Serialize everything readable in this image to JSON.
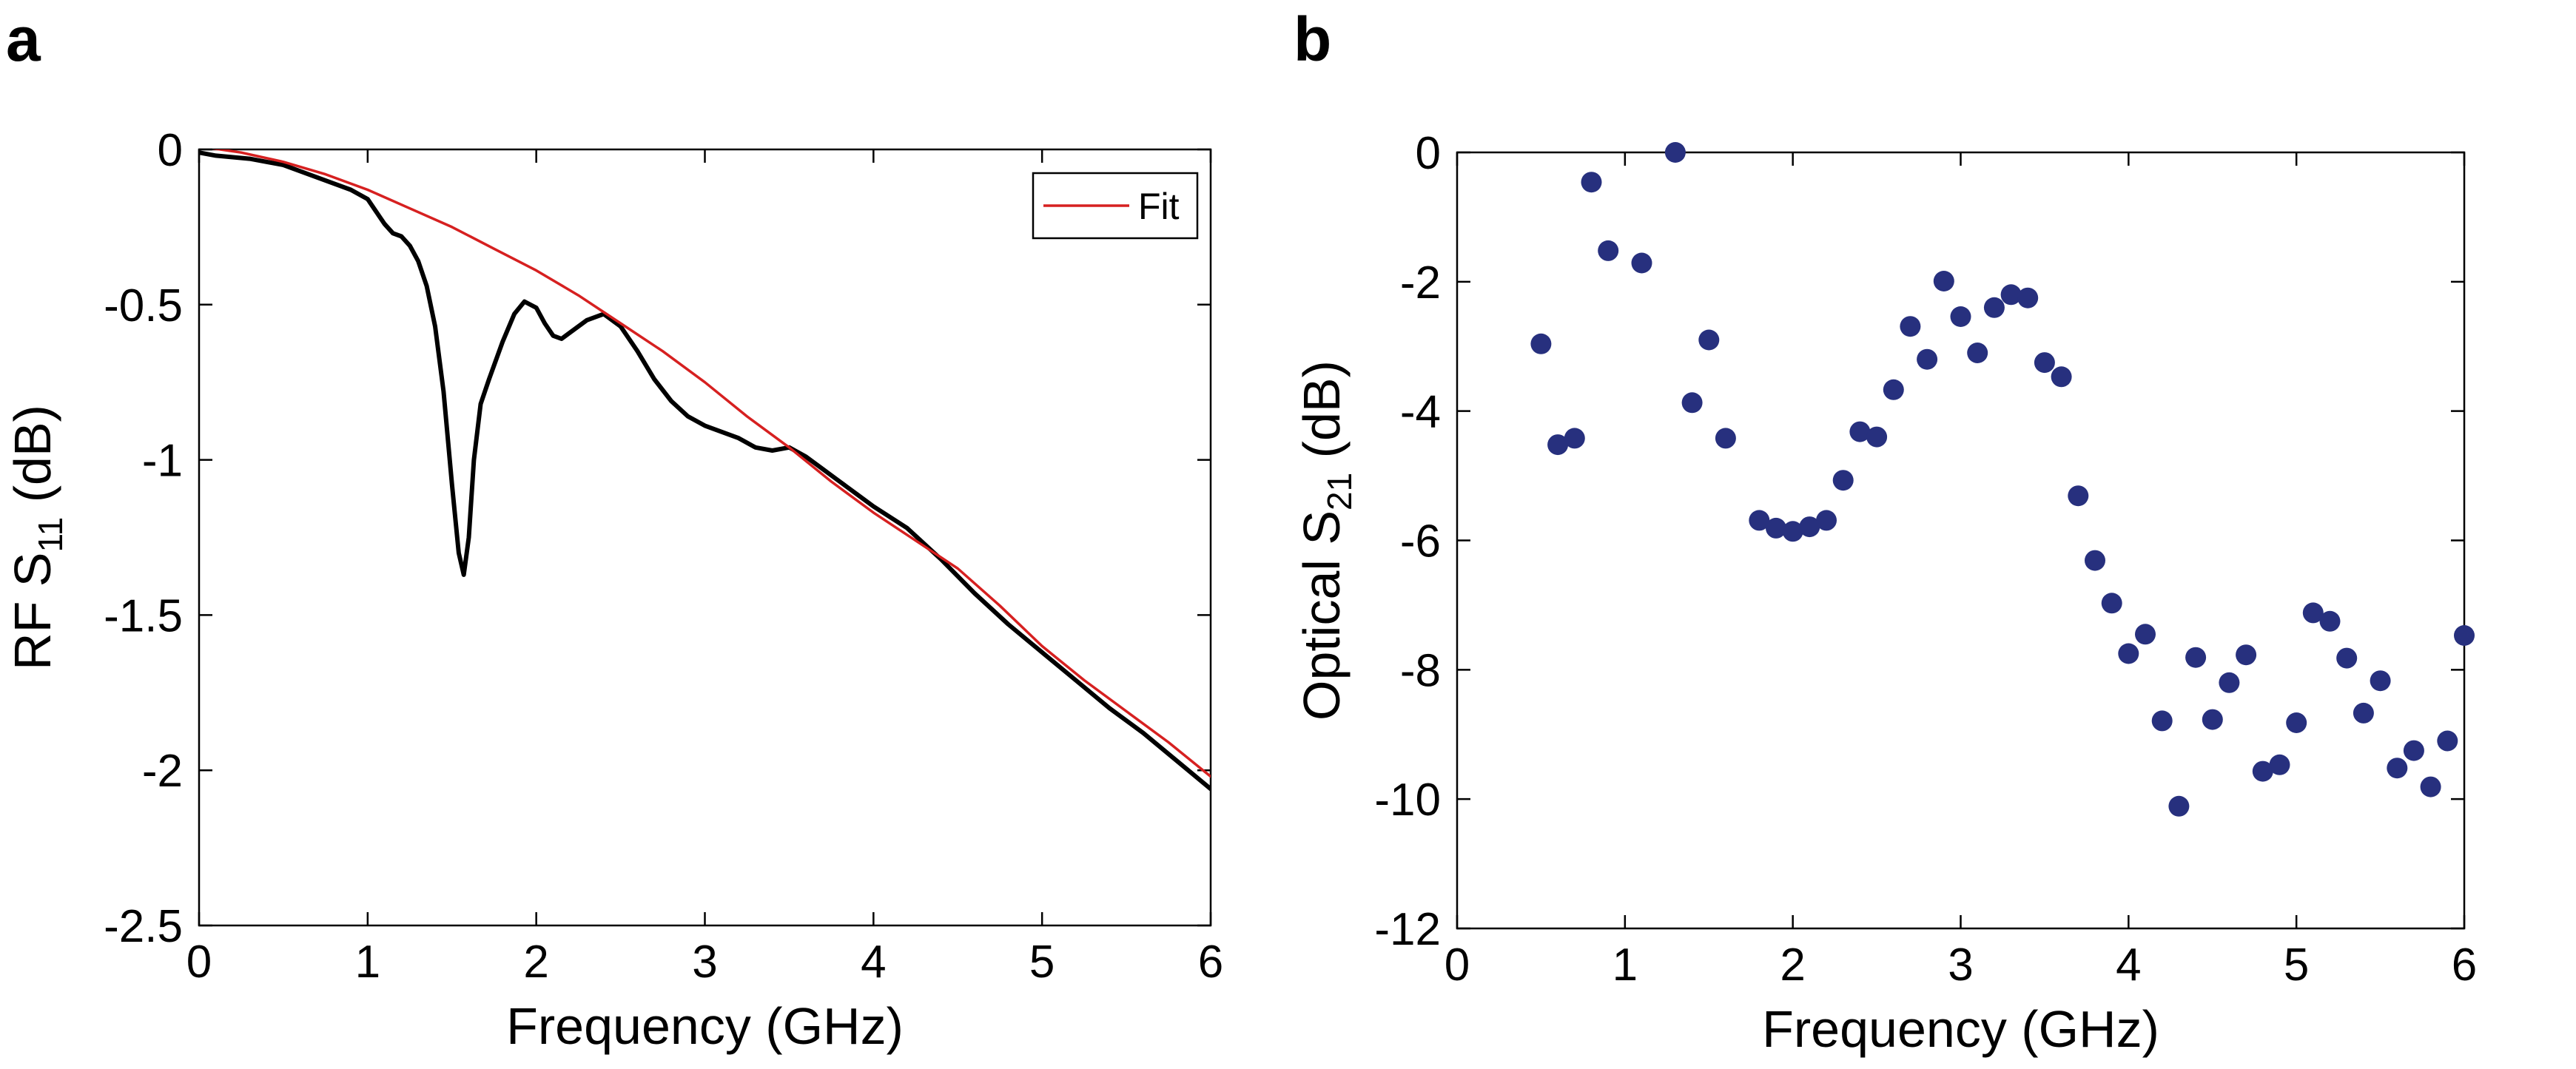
{
  "chart_data": [
    {
      "panel": "a",
      "type": "line",
      "xlabel": "Frequency (GHz)",
      "ylabel_main": "RF S",
      "ylabel_sub": "11",
      "ylabel_unit": " (dB)",
      "xlim": [
        0,
        6
      ],
      "ylim": [
        -2.5,
        0
      ],
      "xticks": [
        "0",
        "1",
        "2",
        "3",
        "4",
        "5",
        "6"
      ],
      "yticks": [
        "0",
        "-0.5",
        "-1",
        "-1.5",
        "-2",
        "-2.5"
      ],
      "ytick_values": [
        0,
        -0.5,
        -1,
        -1.5,
        -2,
        -2.5
      ],
      "legend": {
        "position": "top-right",
        "entries": [
          "Fit"
        ]
      },
      "series": [
        {
          "role": "measured",
          "color": "#000000",
          "points": [
            [
              0,
              -0.01
            ],
            [
              0.1,
              -0.02
            ],
            [
              0.2,
              -0.025
            ],
            [
              0.3,
              -0.03
            ],
            [
              0.4,
              -0.04
            ],
            [
              0.5,
              -0.05
            ],
            [
              0.6,
              -0.07
            ],
            [
              0.7,
              -0.09
            ],
            [
              0.8,
              -0.11
            ],
            [
              0.9,
              -0.13
            ],
            [
              1.0,
              -0.16
            ],
            [
              1.05,
              -0.2
            ],
            [
              1.1,
              -0.24
            ],
            [
              1.15,
              -0.27
            ],
            [
              1.2,
              -0.28
            ],
            [
              1.25,
              -0.31
            ],
            [
              1.3,
              -0.36
            ],
            [
              1.35,
              -0.44
            ],
            [
              1.4,
              -0.57
            ],
            [
              1.45,
              -0.78
            ],
            [
              1.5,
              -1.08
            ],
            [
              1.54,
              -1.3
            ],
            [
              1.57,
              -1.37
            ],
            [
              1.6,
              -1.25
            ],
            [
              1.63,
              -1.0
            ],
            [
              1.67,
              -0.82
            ],
            [
              1.72,
              -0.74
            ],
            [
              1.8,
              -0.62
            ],
            [
              1.87,
              -0.53
            ],
            [
              1.93,
              -0.49
            ],
            [
              2.0,
              -0.51
            ],
            [
              2.05,
              -0.56
            ],
            [
              2.1,
              -0.6
            ],
            [
              2.15,
              -0.61
            ],
            [
              2.2,
              -0.59
            ],
            [
              2.3,
              -0.55
            ],
            [
              2.4,
              -0.53
            ],
            [
              2.5,
              -0.57
            ],
            [
              2.6,
              -0.65
            ],
            [
              2.7,
              -0.74
            ],
            [
              2.8,
              -0.81
            ],
            [
              2.9,
              -0.86
            ],
            [
              3.0,
              -0.89
            ],
            [
              3.1,
              -0.91
            ],
            [
              3.2,
              -0.93
            ],
            [
              3.3,
              -0.96
            ],
            [
              3.4,
              -0.97
            ],
            [
              3.5,
              -0.96
            ],
            [
              3.6,
              -0.99
            ],
            [
              3.7,
              -1.03
            ],
            [
              3.8,
              -1.07
            ],
            [
              3.9,
              -1.11
            ],
            [
              4.0,
              -1.15
            ],
            [
              4.2,
              -1.22
            ],
            [
              4.4,
              -1.32
            ],
            [
              4.6,
              -1.43
            ],
            [
              4.8,
              -1.53
            ],
            [
              5.0,
              -1.62
            ],
            [
              5.2,
              -1.71
            ],
            [
              5.4,
              -1.8
            ],
            [
              5.6,
              -1.88
            ],
            [
              5.8,
              -1.97
            ],
            [
              6.0,
              -2.06
            ]
          ]
        },
        {
          "role": "fit",
          "name": "Fit",
          "color": "#d62020",
          "points": [
            [
              0,
              0.01
            ],
            [
              0.25,
              -0.01
            ],
            [
              0.5,
              -0.04
            ],
            [
              0.75,
              -0.08
            ],
            [
              1.0,
              -0.13
            ],
            [
              1.25,
              -0.19
            ],
            [
              1.5,
              -0.25
            ],
            [
              1.75,
              -0.32
            ],
            [
              2.0,
              -0.39
            ],
            [
              2.25,
              -0.47
            ],
            [
              2.5,
              -0.56
            ],
            [
              2.75,
              -0.65
            ],
            [
              3.0,
              -0.75
            ],
            [
              3.25,
              -0.86
            ],
            [
              3.5,
              -0.96
            ],
            [
              3.75,
              -1.07
            ],
            [
              4.0,
              -1.17
            ],
            [
              4.25,
              -1.26
            ],
            [
              4.5,
              -1.35
            ],
            [
              4.75,
              -1.47
            ],
            [
              5.0,
              -1.6
            ],
            [
              5.25,
              -1.71
            ],
            [
              5.5,
              -1.81
            ],
            [
              5.75,
              -1.91
            ],
            [
              6.0,
              -2.02
            ]
          ]
        }
      ]
    },
    {
      "panel": "b",
      "type": "scatter",
      "xlabel": "Frequency (GHz)",
      "ylabel_main": "Optical S",
      "ylabel_sub": "21",
      "ylabel_unit": " (dB)",
      "xlim": [
        0,
        6
      ],
      "ylim": [
        -12,
        0
      ],
      "xticks": [
        "0",
        "1",
        "2",
        "3",
        "4",
        "5",
        "6"
      ],
      "yticks": [
        "0",
        "-2",
        "-4",
        "-6",
        "-8",
        "-10",
        "-12"
      ],
      "ytick_values": [
        0,
        -2,
        -4,
        -6,
        -8,
        -10,
        -12
      ],
      "series": [
        {
          "color": "#27307e",
          "points": [
            [
              0.5,
              -2.96
            ],
            [
              0.6,
              -4.52
            ],
            [
              0.7,
              -4.42
            ],
            [
              0.8,
              -0.46
            ],
            [
              0.9,
              -1.52
            ],
            [
              1.1,
              -1.71
            ],
            [
              1.3,
              0.0
            ],
            [
              1.4,
              -3.87
            ],
            [
              1.5,
              -2.9
            ],
            [
              1.6,
              -4.42
            ],
            [
              1.8,
              -5.69
            ],
            [
              1.9,
              -5.81
            ],
            [
              2.0,
              -5.86
            ],
            [
              2.1,
              -5.79
            ],
            [
              2.2,
              -5.69
            ],
            [
              2.3,
              -5.07
            ],
            [
              2.4,
              -4.32
            ],
            [
              2.5,
              -4.4
            ],
            [
              2.6,
              -3.67
            ],
            [
              2.7,
              -2.69
            ],
            [
              2.8,
              -3.2
            ],
            [
              2.9,
              -1.99
            ],
            [
              3.0,
              -2.54
            ],
            [
              3.1,
              -3.1
            ],
            [
              3.2,
              -2.4
            ],
            [
              3.3,
              -2.2
            ],
            [
              3.4,
              -2.25
            ],
            [
              3.5,
              -3.25
            ],
            [
              3.6,
              -3.47
            ],
            [
              3.7,
              -5.31
            ],
            [
              3.8,
              -6.31
            ],
            [
              3.9,
              -6.97
            ],
            [
              4.0,
              -7.75
            ],
            [
              4.1,
              -7.45
            ],
            [
              4.2,
              -8.79
            ],
            [
              4.3,
              -10.11
            ],
            [
              4.4,
              -7.81
            ],
            [
              4.5,
              -8.77
            ],
            [
              4.6,
              -8.2
            ],
            [
              4.7,
              -7.77
            ],
            [
              4.8,
              -9.57
            ],
            [
              4.9,
              -9.47
            ],
            [
              5.0,
              -8.82
            ],
            [
              5.1,
              -7.12
            ],
            [
              5.2,
              -7.25
            ],
            [
              5.3,
              -7.82
            ],
            [
              5.4,
              -8.67
            ],
            [
              5.5,
              -8.17
            ],
            [
              5.6,
              -9.52
            ],
            [
              5.7,
              -9.25
            ],
            [
              5.8,
              -9.81
            ],
            [
              5.9,
              -9.1
            ],
            [
              6.0,
              -7.47
            ]
          ]
        }
      ]
    }
  ]
}
